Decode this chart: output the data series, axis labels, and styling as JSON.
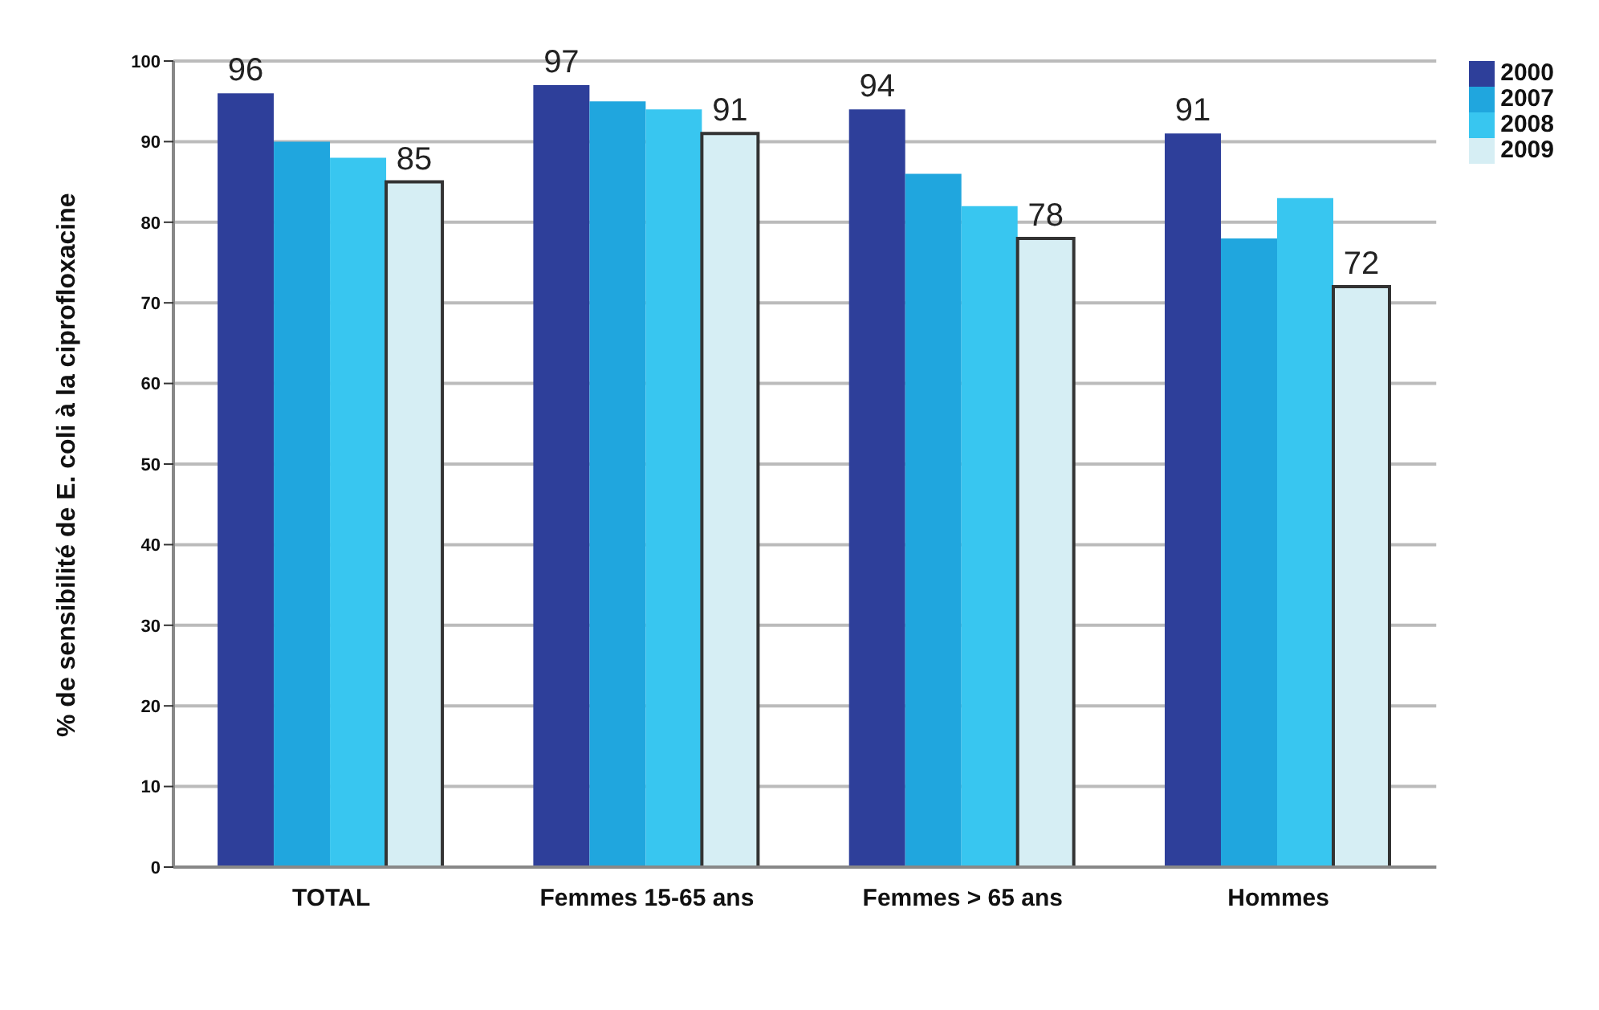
{
  "chart_data": {
    "type": "bar",
    "ylabel": "% de sensibilité de E. coli à la ciprofloxacine",
    "categories": [
      "TOTAL",
      "Femmes 15-65 ans",
      "Femmes > 65 ans",
      "Hommes"
    ],
    "series": [
      {
        "name": "2000",
        "color": "#2e3f9a",
        "values": [
          96,
          97,
          94,
          91
        ],
        "value_labels": [
          "96",
          "97",
          "94",
          "91"
        ]
      },
      {
        "name": "2007",
        "color": "#20a6de",
        "values": [
          90,
          95,
          86,
          78
        ]
      },
      {
        "name": "2008",
        "color": "#38c6f0",
        "values": [
          88,
          94,
          82,
          83
        ]
      },
      {
        "name": "2009",
        "color": "#d6eef4",
        "values": [
          85,
          91,
          78,
          72
        ],
        "value_labels": [
          "85",
          "91",
          "78",
          "72"
        ]
      }
    ],
    "ylim": [
      0,
      100
    ],
    "yticks": [
      0,
      10,
      20,
      30,
      40,
      50,
      60,
      70,
      80,
      90,
      100
    ],
    "grid": "y",
    "legend": "top right"
  }
}
